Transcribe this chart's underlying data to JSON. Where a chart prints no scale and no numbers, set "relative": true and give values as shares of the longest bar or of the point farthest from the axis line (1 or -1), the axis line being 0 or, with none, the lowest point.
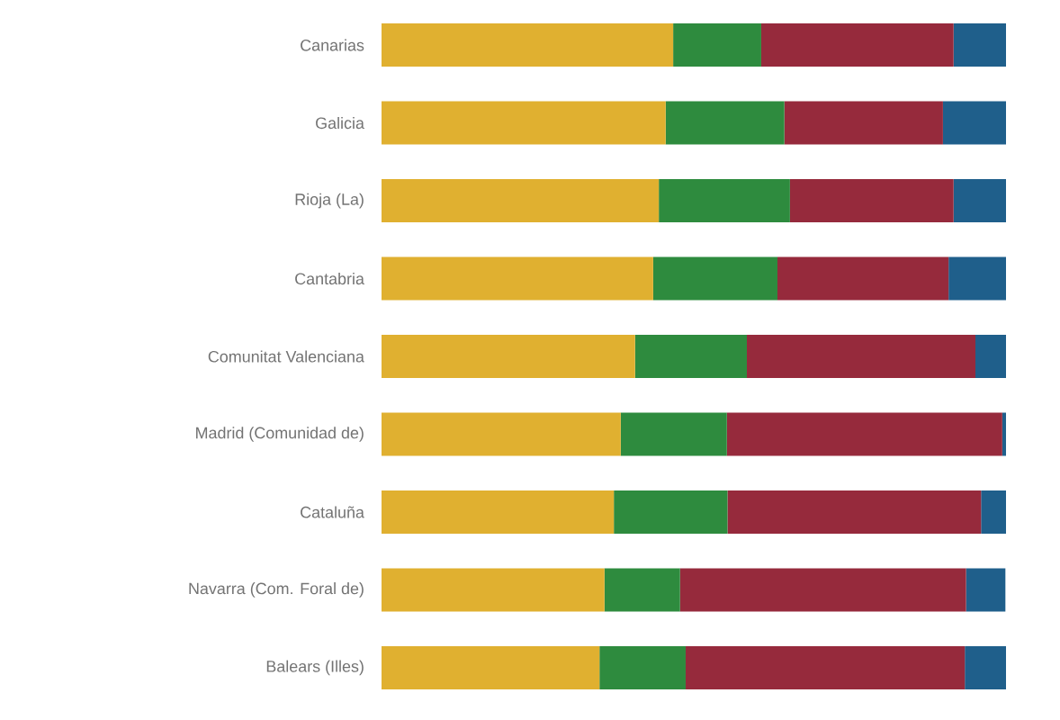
{
  "chart_data": {
    "type": "bar",
    "orientation": "horizontal",
    "stacked": true,
    "relative": true,
    "categories": [
      "Canarias",
      "Galicia",
      "Rioja (La)",
      "Cantabria",
      "Comunitat Valenciana",
      "Madrid (Comunidad de)",
      "Cataluña",
      "Navarra (Com. Foral de)",
      "Balears (Illes)"
    ],
    "series": [
      {
        "color": "#e0b030",
        "values": [
          0.467,
          0.455,
          0.444,
          0.435,
          0.406,
          0.383,
          0.372,
          0.357,
          0.349
        ]
      },
      {
        "color": "#2e8b3e",
        "values": [
          0.141,
          0.19,
          0.21,
          0.199,
          0.179,
          0.17,
          0.182,
          0.121,
          0.138
        ]
      },
      {
        "color": "#962a3c",
        "values": [
          0.308,
          0.254,
          0.262,
          0.274,
          0.366,
          0.441,
          0.406,
          0.458,
          0.447
        ]
      },
      {
        "color": "#1f5f8b",
        "values": [
          0.084,
          0.101,
          0.084,
          0.092,
          0.049,
          0.006,
          0.04,
          0.063,
          0.066
        ]
      }
    ]
  }
}
